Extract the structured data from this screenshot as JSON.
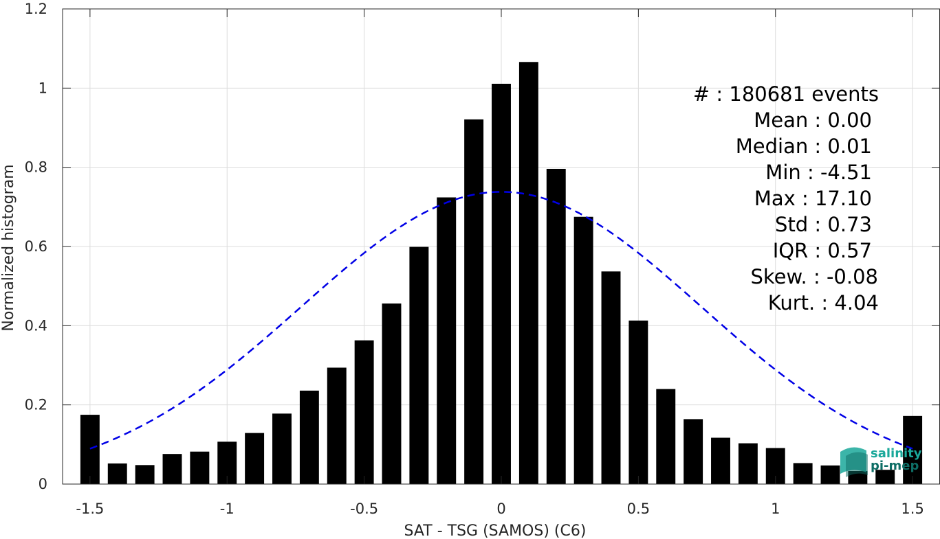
{
  "chart_data": {
    "type": "bar",
    "xlabel": "SAT - TSG (SAMOS) (C6)",
    "ylabel": "Normalized histogram",
    "xlim": [
      -1.6,
      1.6
    ],
    "ylim": [
      0,
      1.2
    ],
    "xticks": [
      -1.5,
      -1,
      -0.5,
      0,
      0.5,
      1,
      1.5
    ],
    "xtick_labels": [
      "-1.5",
      "-1",
      "-0.5",
      "0",
      "0.5",
      "1",
      "1.5"
    ],
    "yticks": [
      0,
      0.2,
      0.4,
      0.6,
      0.8,
      1,
      1.2
    ],
    "ytick_labels": [
      "0",
      "0.2",
      "0.4",
      "0.6",
      "0.8",
      "1",
      "1.2"
    ],
    "grid": true,
    "x": [
      -1.5,
      -1.4,
      -1.3,
      -1.2,
      -1.1,
      -1.0,
      -0.9,
      -0.8,
      -0.7,
      -0.6,
      -0.5,
      -0.4,
      -0.3,
      -0.2,
      -0.1,
      0.0,
      0.1,
      0.2,
      0.3,
      0.4,
      0.5,
      0.6,
      0.7,
      0.8,
      0.9,
      1.0,
      1.1,
      1.2,
      1.3,
      1.4,
      1.5
    ],
    "values": [
      0.175,
      0.052,
      0.048,
      0.076,
      0.082,
      0.107,
      0.129,
      0.178,
      0.236,
      0.294,
      0.363,
      0.456,
      0.599,
      0.724,
      0.921,
      1.011,
      1.066,
      0.796,
      0.675,
      0.537,
      0.413,
      0.24,
      0.164,
      0.117,
      0.103,
      0.091,
      0.053,
      0.047,
      0.033,
      0.036,
      0.172
    ],
    "bar_color": "#000000",
    "fit": {
      "type": "gaussian",
      "mean": 0.0,
      "std": 0.73,
      "peak": 0.738,
      "x_range": [
        -1.5,
        1.5
      ],
      "color": "#0000e6",
      "style": "dashed"
    },
    "stats_lines": [
      "#  : 180681 events",
      "Mean : 0.00",
      "Median : 0.01",
      "Min : -4.51",
      "Max : 17.10",
      "Std : 0.73",
      "IQR : 0.57",
      "Skew. : -0.08",
      "Kurt. : 4.04"
    ]
  },
  "logo": {
    "line1": "salinity",
    "line2": "pi-mep",
    "color1": "#1aa89a",
    "color2": "#0e6e66"
  }
}
